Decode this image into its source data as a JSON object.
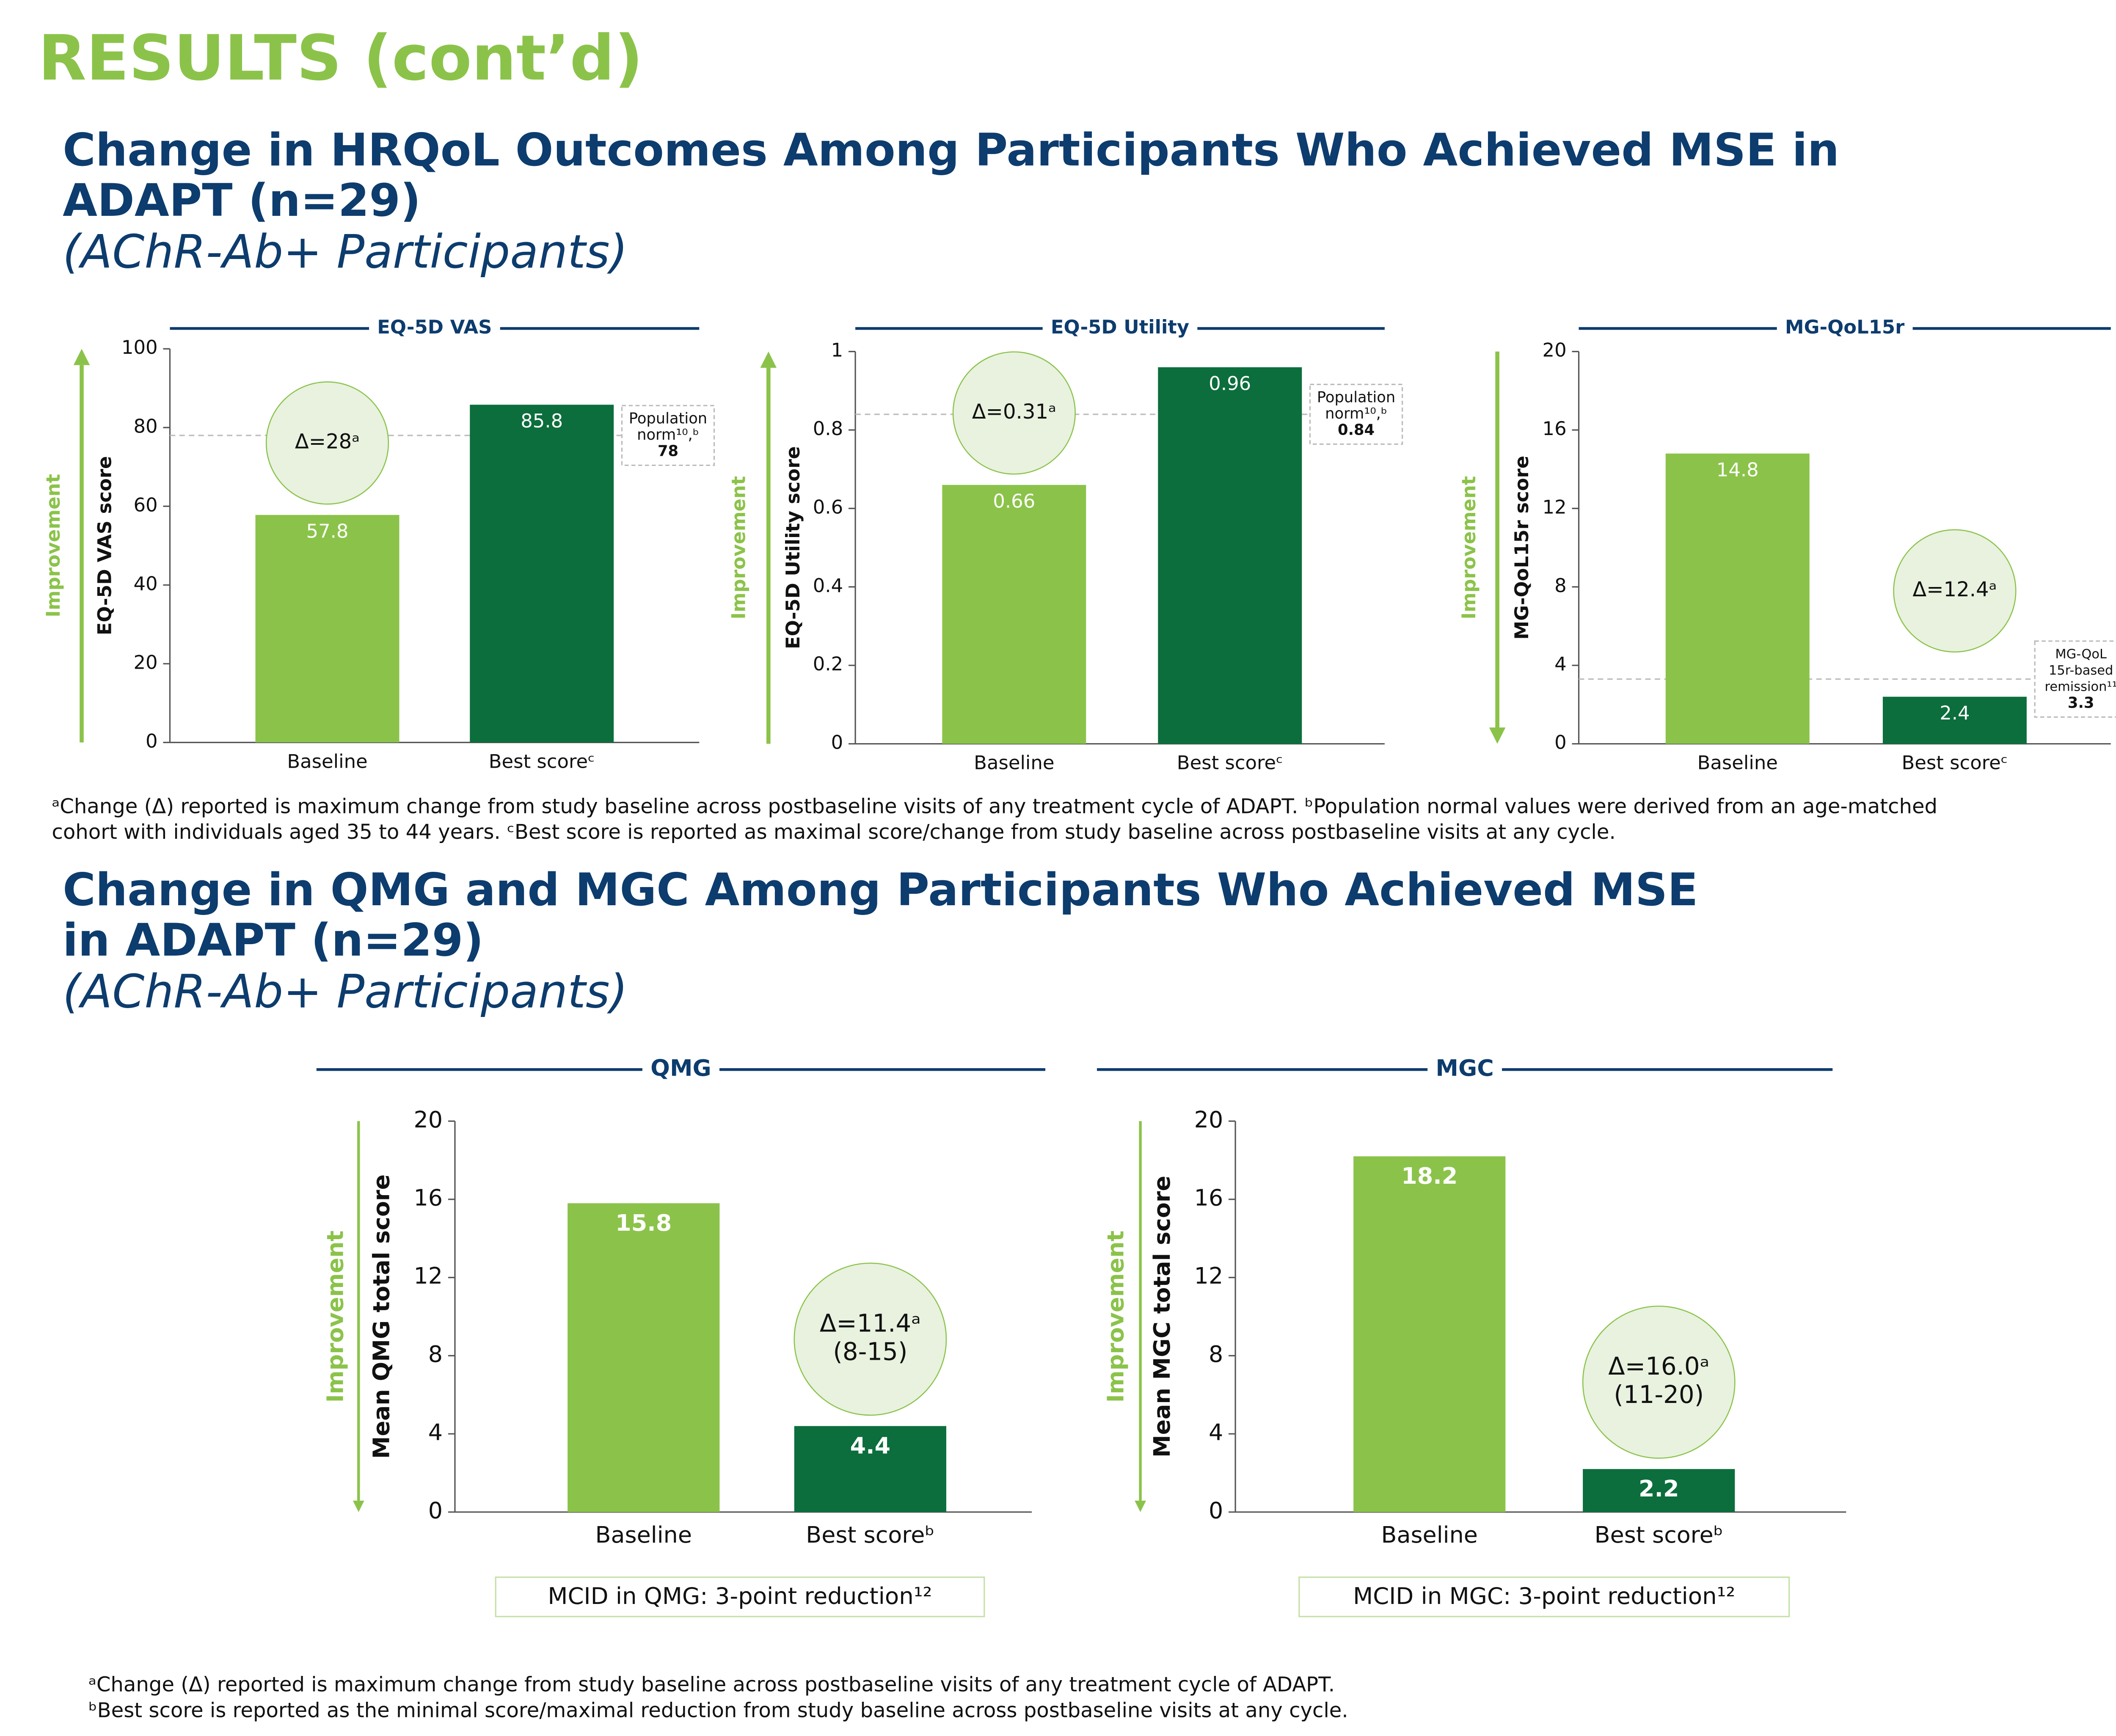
{
  "title": "RESULTS (cont’d)",
  "sections": [
    {
      "heading": [
        "Change in HRQoL Outcomes Among Participants Who Achieved MSE in",
        "ADAPT (n=29)"
      ],
      "subheading": "(AChR-Ab+ Participants)",
      "footnotes": [
        "ᵃChange (Δ) reported is maximum change from study baseline across postbaseline visits of any treatment cycle of ADAPT. ᵇPopulation normal values were derived from an age-matched",
        "cohort with individuals aged 35 to 44 years. ᶜBest score is reported as maximal score/change from study baseline across postbaseline visits at any cycle."
      ]
    },
    {
      "heading": [
        "Change in QMG and MGC Among Participants Who Achieved MSE",
        "in ADAPT (n=29)"
      ],
      "subheading": "(AChR-Ab+ Participants)",
      "footnotes": [
        "ᵃChange (Δ) reported is maximum change from study baseline across postbaseline visits of any treatment cycle of ADAPT.",
        "ᵇBest score is reported as the minimal score/maximal reduction from study baseline across postbaseline visits at any cycle."
      ]
    }
  ],
  "chart_data": [
    {
      "type": "bar",
      "title": "EQ-5D VAS",
      "ylabel": "EQ-5D VAS score",
      "categories": [
        "Baseline",
        "Best scoreᶜ"
      ],
      "values": [
        57.8,
        85.8
      ],
      "colors": [
        "#8bc34a",
        "#0b6e3c"
      ],
      "ylim": [
        0,
        100
      ],
      "yticks": [
        0,
        20,
        40,
        60,
        80,
        100
      ],
      "improvement_label": "Improvement",
      "improvement_direction": "up",
      "annotation": [
        "Δ=28ᵃ"
      ],
      "reference_value": 78,
      "reference_label": [
        "Population",
        "norm¹⁰,ᵇ"
      ]
    },
    {
      "type": "bar",
      "title": "EQ-5D Utility",
      "ylabel": "EQ-5D Utility score",
      "categories": [
        "Baseline",
        "Best scoreᶜ"
      ],
      "values": [
        0.66,
        0.96
      ],
      "colors": [
        "#8bc34a",
        "#0b6e3c"
      ],
      "ylim": [
        0,
        1
      ],
      "yticks": [
        0,
        0.2,
        0.4,
        0.6,
        0.8,
        1
      ],
      "improvement_label": "Improvement",
      "improvement_direction": "up",
      "annotation": [
        "Δ=0.31ᵃ"
      ],
      "reference_value": 0.84,
      "reference_label": [
        "Population",
        "norm¹⁰,ᵇ"
      ]
    },
    {
      "type": "bar",
      "title": "MG-QoL15r",
      "ylabel": "MG-QoL15r score",
      "categories": [
        "Baseline",
        "Best scoreᶜ"
      ],
      "values": [
        14.8,
        2.4
      ],
      "colors": [
        "#8bc34a",
        "#0b6e3c"
      ],
      "ylim": [
        0,
        20
      ],
      "yticks": [
        0,
        4,
        8,
        12,
        16,
        20
      ],
      "improvement_label": "Improvement",
      "improvement_direction": "down",
      "annotation": [
        "Δ=12.4ᵃ"
      ],
      "reference_value": 3.3,
      "reference_label": [
        "MG-QoL",
        "15r-based",
        "remission¹¹"
      ]
    },
    {
      "type": "bar",
      "title": "QMG",
      "ylabel": "Mean QMG total score",
      "categories": [
        "Baseline",
        "Best scoreᵇ"
      ],
      "values": [
        15.8,
        4.4
      ],
      "colors": [
        "#8bc34a",
        "#0b6e3c"
      ],
      "ylim": [
        0,
        20
      ],
      "yticks": [
        0,
        4,
        8,
        12,
        16,
        20
      ],
      "improvement_label": "Improvement",
      "improvement_direction": "down",
      "annotation": [
        "Δ=11.4ᵃ",
        "(8-15)"
      ],
      "value_label_bold": true,
      "note": "MCID in QMG: 3-point reduction¹²"
    },
    {
      "type": "bar",
      "title": "MGC",
      "ylabel": "Mean MGC total score",
      "categories": [
        "Baseline",
        "Best scoreᵇ"
      ],
      "values": [
        18.2,
        2.2
      ],
      "colors": [
        "#8bc34a",
        "#0b6e3c"
      ],
      "ylim": [
        0,
        20
      ],
      "yticks": [
        0,
        4,
        8,
        12,
        16,
        20
      ],
      "improvement_label": "Improvement",
      "improvement_direction": "down",
      "annotation": [
        "Δ=16.0ᵃ",
        "(11-20)"
      ],
      "value_label_bold": true,
      "note": "MCID in MGC: 3-point reduction¹²"
    }
  ]
}
